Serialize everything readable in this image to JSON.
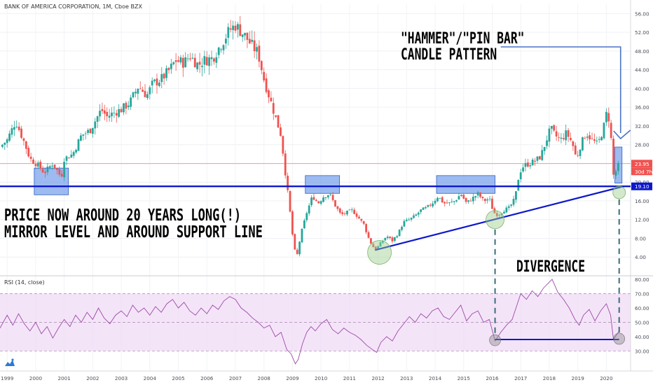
{
  "header": {
    "symbol_title": "BANK OF AMERICA CORPORATION, 1M, Cboe BZX"
  },
  "rsi_panel": {
    "title": "RSI (14, close)"
  },
  "annotations": {
    "hammer_line1": "\"HAMMER\"/\"PIN BAR\"",
    "hammer_line2": "CANDLE PATTERN",
    "price_line1": "PRICE NOW AROUND 20 YEARS LONG(!)",
    "price_line2": "MIRROR LEVEL AND AROUND SUPPORT LINE",
    "divergence": "DIVERGENCE"
  },
  "price_badges": {
    "last_price": "23.95",
    "countdown": "30d 7h",
    "support_level": "19.10"
  },
  "colors": {
    "up": "#26a69a",
    "down": "#ef5350",
    "rsi_line": "#9c4ba8",
    "rsi_band": "#efd8f5",
    "support_line": "#0d18c9",
    "box_fill": "#5b8ee8",
    "circle_fill": "#9bcf8e",
    "callout": "#4a72c9"
  },
  "chart_data": [
    {
      "type": "candlestick",
      "title": "BANK OF AMERICA CORPORATION, 1M, Cboe BZX",
      "ylim": [
        0,
        58
      ],
      "xlim": [
        1998.75,
        2020.85
      ],
      "x_ticks": [
        "1999",
        "2000",
        "2001",
        "2002",
        "2003",
        "2004",
        "2005",
        "2006",
        "2007",
        "2008",
        "2009",
        "2010",
        "2011",
        "2012",
        "2013",
        "2014",
        "2015",
        "2016",
        "2017",
        "2018",
        "2019",
        "2020"
      ],
      "y_ticks": [
        "4.00",
        "8.00",
        "12.00",
        "16.00",
        "20.00",
        "24.00",
        "28.00",
        "32.00",
        "36.00",
        "40.00",
        "44.00",
        "48.00",
        "52.00",
        "56.00"
      ],
      "close_path": [
        [
          1998.75,
          27.5
        ],
        [
          1999.0,
          29.0
        ],
        [
          1999.3,
          33.0
        ],
        [
          1999.6,
          28.5
        ],
        [
          1999.8,
          25.0
        ],
        [
          2000.1,
          23.5
        ],
        [
          2000.3,
          22.0
        ],
        [
          2000.6,
          24.0
        ],
        [
          2000.9,
          21.0
        ],
        [
          2001.0,
          25.0
        ],
        [
          2001.3,
          26.0
        ],
        [
          2001.6,
          30.0
        ],
        [
          2001.9,
          31.0
        ],
        [
          2002.3,
          35.5
        ],
        [
          2002.5,
          34.0
        ],
        [
          2002.8,
          35.0
        ],
        [
          2003.0,
          35.5
        ],
        [
          2003.3,
          37.0
        ],
        [
          2003.6,
          40.5
        ],
        [
          2003.9,
          38.5
        ],
        [
          2004.1,
          41.0
        ],
        [
          2004.4,
          42.0
        ],
        [
          2004.7,
          44.0
        ],
        [
          2004.9,
          46.0
        ],
        [
          2005.2,
          45.5
        ],
        [
          2005.4,
          47.0
        ],
        [
          2005.7,
          45.0
        ],
        [
          2005.9,
          46.0
        ],
        [
          2006.2,
          46.5
        ],
        [
          2006.5,
          49.5
        ],
        [
          2006.8,
          52.5
        ],
        [
          2007.0,
          53.5
        ],
        [
          2007.3,
          51.5
        ],
        [
          2007.6,
          49.0
        ],
        [
          2007.8,
          47.5
        ],
        [
          2008.0,
          42.0
        ],
        [
          2008.2,
          38.0
        ],
        [
          2008.4,
          34.0
        ],
        [
          2008.6,
          30.0
        ],
        [
          2008.75,
          22.0
        ],
        [
          2008.9,
          14.5
        ],
        [
          2009.05,
          6.0
        ],
        [
          2009.15,
          4.0
        ],
        [
          2009.3,
          9.0
        ],
        [
          2009.5,
          13.5
        ],
        [
          2009.7,
          17.0
        ],
        [
          2009.9,
          15.5
        ],
        [
          2010.1,
          17.0
        ],
        [
          2010.3,
          17.5
        ],
        [
          2010.5,
          15.0
        ],
        [
          2010.7,
          13.0
        ],
        [
          2010.9,
          13.5
        ],
        [
          2011.1,
          14.0
        ],
        [
          2011.3,
          12.5
        ],
        [
          2011.5,
          11.0
        ],
        [
          2011.7,
          7.5
        ],
        [
          2011.9,
          5.5
        ],
        [
          2012.1,
          7.0
        ],
        [
          2012.3,
          8.5
        ],
        [
          2012.5,
          7.5
        ],
        [
          2012.7,
          9.0
        ],
        [
          2012.9,
          11.5
        ],
        [
          2013.1,
          12.0
        ],
        [
          2013.3,
          12.8
        ],
        [
          2013.5,
          14.0
        ],
        [
          2013.7,
          14.5
        ],
        [
          2013.9,
          15.5
        ],
        [
          2014.1,
          17.0
        ],
        [
          2014.3,
          15.5
        ],
        [
          2014.5,
          15.5
        ],
        [
          2014.7,
          16.0
        ],
        [
          2014.9,
          17.5
        ],
        [
          2015.1,
          15.5
        ],
        [
          2015.3,
          16.5
        ],
        [
          2015.5,
          17.5
        ],
        [
          2015.7,
          16.0
        ],
        [
          2015.9,
          16.5
        ],
        [
          2016.05,
          13.5
        ],
        [
          2016.2,
          13.0
        ],
        [
          2016.4,
          14.0
        ],
        [
          2016.6,
          14.5
        ],
        [
          2016.8,
          16.5
        ],
        [
          2016.95,
          22.0
        ],
        [
          2017.1,
          23.5
        ],
        [
          2017.3,
          24.0
        ],
        [
          2017.5,
          24.5
        ],
        [
          2017.7,
          25.5
        ],
        [
          2017.9,
          29.0
        ],
        [
          2018.05,
          31.5
        ],
        [
          2018.2,
          30.0
        ],
        [
          2018.4,
          29.0
        ],
        [
          2018.6,
          30.5
        ],
        [
          2018.8,
          28.5
        ],
        [
          2018.95,
          25.0
        ],
        [
          2019.1,
          28.0
        ],
        [
          2019.3,
          30.5
        ],
        [
          2019.5,
          29.0
        ],
        [
          2019.7,
          28.0
        ],
        [
          2019.9,
          31.5
        ],
        [
          2020.0,
          34.5
        ],
        [
          2020.1,
          33.5
        ],
        [
          2020.2,
          27.0
        ],
        [
          2020.25,
          21.5
        ],
        [
          2020.35,
          22.5
        ],
        [
          2020.45,
          23.95
        ]
      ],
      "support_level": 19.1,
      "last_price": 23.95,
      "support_trendline": [
        [
          2011.9,
          5.5
        ],
        [
          2020.6,
          19.1
        ]
      ],
      "mirror_zones": [
        {
          "x": [
            1999.95,
            2001.15
          ],
          "y": [
            17.3,
            23.0
          ]
        },
        {
          "x": [
            2009.45,
            2010.65
          ],
          "y": [
            17.6,
            21.4
          ]
        },
        {
          "x": [
            2014.05,
            2016.1
          ],
          "y": [
            17.6,
            21.4
          ]
        },
        {
          "x": [
            2020.3,
            2020.55
          ],
          "y": [
            19.8,
            27.5
          ]
        }
      ],
      "pivot_circles": [
        {
          "x": 2012.05,
          "y": 5.0
        },
        {
          "x": 2016.1,
          "y": 12.0
        },
        {
          "x": 2020.45,
          "y": 17.8
        }
      ]
    },
    {
      "type": "line",
      "title": "RSI (14, close)",
      "ylim": [
        16,
        82
      ],
      "y_ticks": [
        "30.00",
        "40.00",
        "50.00",
        "60.00",
        "70.00",
        "80.00"
      ],
      "band": [
        30,
        70
      ],
      "series": [
        {
          "name": "RSI",
          "points": [
            [
              1998.75,
              46
            ],
            [
              1999.0,
              55
            ],
            [
              1999.2,
              48
            ],
            [
              1999.4,
              56
            ],
            [
              1999.6,
              49
            ],
            [
              1999.8,
              44
            ],
            [
              2000.0,
              50
            ],
            [
              2000.2,
              42
            ],
            [
              2000.4,
              47
            ],
            [
              2000.6,
              39
            ],
            [
              2000.8,
              46
            ],
            [
              2001.0,
              52
            ],
            [
              2001.2,
              47
            ],
            [
              2001.4,
              55
            ],
            [
              2001.6,
              50
            ],
            [
              2001.8,
              57
            ],
            [
              2002.0,
              52
            ],
            [
              2002.2,
              60
            ],
            [
              2002.4,
              53
            ],
            [
              2002.6,
              49
            ],
            [
              2002.8,
              55
            ],
            [
              2003.0,
              58
            ],
            [
              2003.2,
              54
            ],
            [
              2003.4,
              62
            ],
            [
              2003.6,
              57
            ],
            [
              2003.8,
              60
            ],
            [
              2004.0,
              55
            ],
            [
              2004.2,
              61
            ],
            [
              2004.4,
              57
            ],
            [
              2004.6,
              63
            ],
            [
              2004.8,
              66
            ],
            [
              2005.0,
              60
            ],
            [
              2005.2,
              64
            ],
            [
              2005.4,
              58
            ],
            [
              2005.6,
              55
            ],
            [
              2005.8,
              60
            ],
            [
              2006.0,
              56
            ],
            [
              2006.2,
              62
            ],
            [
              2006.4,
              59
            ],
            [
              2006.6,
              65
            ],
            [
              2006.8,
              68
            ],
            [
              2007.0,
              66
            ],
            [
              2007.2,
              60
            ],
            [
              2007.4,
              57
            ],
            [
              2007.6,
              53
            ],
            [
              2007.8,
              50
            ],
            [
              2008.0,
              46
            ],
            [
              2008.2,
              48
            ],
            [
              2008.4,
              40
            ],
            [
              2008.6,
              43
            ],
            [
              2008.8,
              31
            ],
            [
              2008.95,
              28
            ],
            [
              2009.1,
              21
            ],
            [
              2009.2,
              24
            ],
            [
              2009.35,
              35
            ],
            [
              2009.5,
              43
            ],
            [
              2009.65,
              47
            ],
            [
              2009.8,
              44
            ],
            [
              2010.0,
              49
            ],
            [
              2010.2,
              52
            ],
            [
              2010.4,
              45
            ],
            [
              2010.6,
              42
            ],
            [
              2010.8,
              46
            ],
            [
              2011.0,
              43
            ],
            [
              2011.2,
              41
            ],
            [
              2011.4,
              38
            ],
            [
              2011.6,
              34
            ],
            [
              2011.8,
              31
            ],
            [
              2011.95,
              29
            ],
            [
              2012.1,
              36
            ],
            [
              2012.3,
              40
            ],
            [
              2012.5,
              37
            ],
            [
              2012.7,
              44
            ],
            [
              2012.9,
              49
            ],
            [
              2013.1,
              54
            ],
            [
              2013.3,
              50
            ],
            [
              2013.5,
              56
            ],
            [
              2013.7,
              53
            ],
            [
              2013.9,
              58
            ],
            [
              2014.1,
              60
            ],
            [
              2014.3,
              54
            ],
            [
              2014.5,
              52
            ],
            [
              2014.7,
              57
            ],
            [
              2014.9,
              62
            ],
            [
              2015.1,
              51
            ],
            [
              2015.3,
              56
            ],
            [
              2015.5,
              58
            ],
            [
              2015.7,
              50
            ],
            [
              2015.9,
              52
            ],
            [
              2016.1,
              37
            ],
            [
              2016.3,
              43
            ],
            [
              2016.5,
              48
            ],
            [
              2016.7,
              52
            ],
            [
              2016.85,
              61
            ],
            [
              2017.0,
              70
            ],
            [
              2017.2,
              66
            ],
            [
              2017.4,
              72
            ],
            [
              2017.6,
              68
            ],
            [
              2017.8,
              74
            ],
            [
              2017.95,
              77
            ],
            [
              2018.1,
              80
            ],
            [
              2018.3,
              71
            ],
            [
              2018.5,
              66
            ],
            [
              2018.7,
              60
            ],
            [
              2018.9,
              52
            ],
            [
              2019.05,
              48
            ],
            [
              2019.2,
              55
            ],
            [
              2019.4,
              59
            ],
            [
              2019.6,
              51
            ],
            [
              2019.8,
              58
            ],
            [
              2020.0,
              63
            ],
            [
              2020.15,
              55
            ],
            [
              2020.25,
              38
            ],
            [
              2020.35,
              41
            ],
            [
              2020.45,
              44
            ]
          ]
        }
      ],
      "divergence_line": [
        [
          2016.1,
          38
        ],
        [
          2020.45,
          38
        ]
      ],
      "pivot_circles": [
        {
          "x": 2016.1,
          "y": 37.5
        },
        {
          "x": 2020.45,
          "y": 38.5
        }
      ]
    }
  ]
}
